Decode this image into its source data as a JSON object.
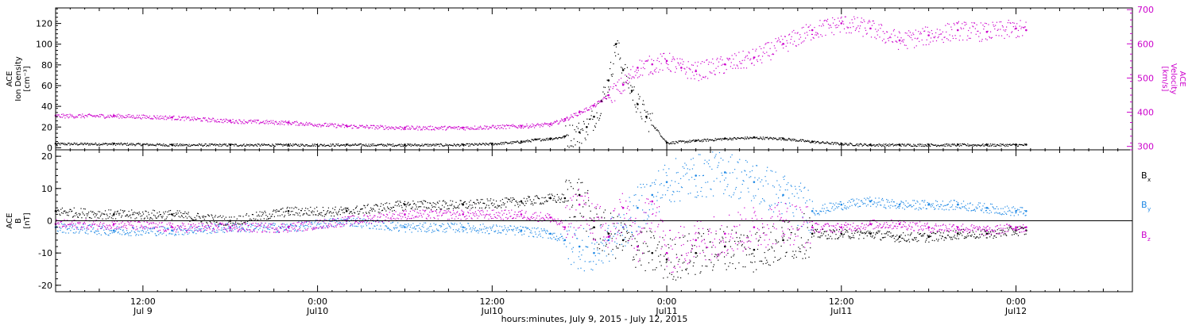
{
  "footer": {
    "xlabel": "hours:minutes, July  9, 2015 - July 12, 2015"
  },
  "x_ticks": [
    {
      "x": 12,
      "time": "12:00",
      "date": "Jul 9"
    },
    {
      "x": 24,
      "time": "0:00",
      "date": "Jul10"
    },
    {
      "x": 36,
      "time": "12:00",
      "date": "Jul10"
    },
    {
      "x": 48,
      "time": "0:00",
      "date": "Jul11"
    },
    {
      "x": 60,
      "time": "12:00",
      "date": "Jul11"
    },
    {
      "x": 72,
      "time": "0:00",
      "date": "Jul12"
    }
  ],
  "chart_data": [
    {
      "type": "scatter",
      "x_unit": "hours since 2015-07-09 00:00",
      "xlim": [
        6,
        80
      ],
      "left_axis": {
        "label_lines": [
          "ACE",
          "Ion Density",
          "[cm⁻³]"
        ],
        "ylim": [
          -2,
          135
        ],
        "ticks": [
          0,
          20,
          40,
          60,
          80,
          100,
          120
        ]
      },
      "right_axis": {
        "label_lines": [
          "ACE",
          "Velocity",
          "[km/s]"
        ],
        "ylim": [
          290,
          705
        ],
        "ticks": [
          300,
          400,
          500,
          600,
          700
        ],
        "color": "#cc00cc"
      },
      "series": [
        {
          "name": "Ion Density",
          "axis": "left",
          "color": "#000000",
          "x": [
            6,
            10,
            14,
            18,
            22,
            26,
            30,
            34,
            36,
            38,
            39,
            40,
            41,
            42,
            42.5,
            43,
            43.5,
            44,
            44.5,
            45,
            45.6,
            46,
            46.6,
            48,
            50,
            52,
            54,
            56,
            58,
            60,
            62,
            64,
            66,
            68,
            70,
            72,
            72.7
          ],
          "y": [
            4,
            4,
            3,
            3,
            3,
            3,
            3,
            3,
            4,
            6,
            8,
            9,
            11,
            15,
            20,
            30,
            45,
            65,
            100,
            75,
            55,
            42,
            30,
            5,
            7,
            9,
            10,
            9,
            6,
            4,
            3,
            3,
            3,
            3,
            3,
            3,
            3
          ]
        },
        {
          "name": "Velocity",
          "axis": "right",
          "color": "#cc00cc",
          "x": [
            6,
            10,
            14,
            18,
            22,
            26,
            30,
            34,
            38,
            40,
            41,
            42,
            43,
            44,
            45,
            46,
            47,
            48,
            49,
            50,
            52,
            54,
            56,
            58,
            60,
            62,
            64,
            66,
            68,
            70,
            72,
            72.7
          ],
          "y": [
            390,
            390,
            385,
            375,
            370,
            360,
            355,
            355,
            360,
            365,
            380,
            400,
            420,
            450,
            480,
            530,
            540,
            550,
            530,
            520,
            540,
            560,
            600,
            640,
            660,
            645,
            610,
            625,
            640,
            635,
            645,
            640
          ]
        }
      ]
    },
    {
      "type": "scatter",
      "x_unit": "hours since 2015-07-09 00:00",
      "xlim": [
        6,
        80
      ],
      "left_axis": {
        "label_lines": [
          "ACE",
          "B",
          "[nT]"
        ],
        "ylim": [
          -22,
          22
        ],
        "ticks": [
          -20,
          -10,
          0,
          10,
          20
        ]
      },
      "series": [
        {
          "name": "Bx",
          "legend_main": "B",
          "legend_sub": "x",
          "color": "#000000",
          "x": [
            6,
            10,
            14,
            18,
            22,
            26,
            30,
            34,
            38,
            40,
            41,
            42,
            43,
            44,
            45,
            46,
            47,
            48,
            50,
            52,
            54,
            56,
            58,
            60,
            62,
            64,
            66,
            68,
            70,
            72,
            72.7
          ],
          "y": [
            3,
            2,
            2,
            0,
            3,
            3,
            5,
            5,
            6,
            7,
            7,
            8,
            -2,
            -4,
            -6,
            -8,
            -10,
            -12,
            -10,
            -8,
            -9,
            -6,
            -4,
            -4,
            -4,
            -5,
            -5,
            -4,
            -4,
            -3,
            -3
          ]
        },
        {
          "name": "By",
          "legend_main": "B",
          "legend_sub": "y",
          "color": "#1e88e5",
          "x": [
            6,
            10,
            14,
            18,
            22,
            26,
            30,
            34,
            38,
            40,
            41,
            42,
            43,
            44,
            45,
            46,
            47,
            48,
            50,
            52,
            54,
            56,
            58,
            60,
            62,
            64,
            66,
            68,
            70,
            72,
            72.7
          ],
          "y": [
            -2,
            -3,
            -3,
            -2,
            -2,
            0,
            -2,
            -2,
            -3,
            -4,
            -6,
            -8,
            -10,
            -6,
            -2,
            4,
            8,
            12,
            14,
            15,
            12,
            8,
            3,
            5,
            6,
            5,
            5,
            5,
            4,
            3,
            3
          ]
        },
        {
          "name": "Bz",
          "legend_main": "B",
          "legend_sub": "z",
          "color": "#cc00cc",
          "x": [
            6,
            10,
            14,
            18,
            22,
            26,
            30,
            34,
            38,
            40,
            41,
            42,
            43,
            44,
            45,
            46,
            47,
            48,
            50,
            52,
            54,
            56,
            58,
            60,
            62,
            64,
            66,
            68,
            70,
            72,
            72.7
          ],
          "y": [
            -1,
            -1,
            -2,
            -2,
            -2,
            0,
            2,
            2,
            2,
            1,
            -2,
            5,
            0,
            -5,
            4,
            -8,
            6,
            -10,
            -6,
            -4,
            -2,
            0,
            -2,
            -2,
            -1,
            -1,
            -2,
            -2,
            -3,
            -2,
            -2
          ]
        }
      ]
    }
  ]
}
